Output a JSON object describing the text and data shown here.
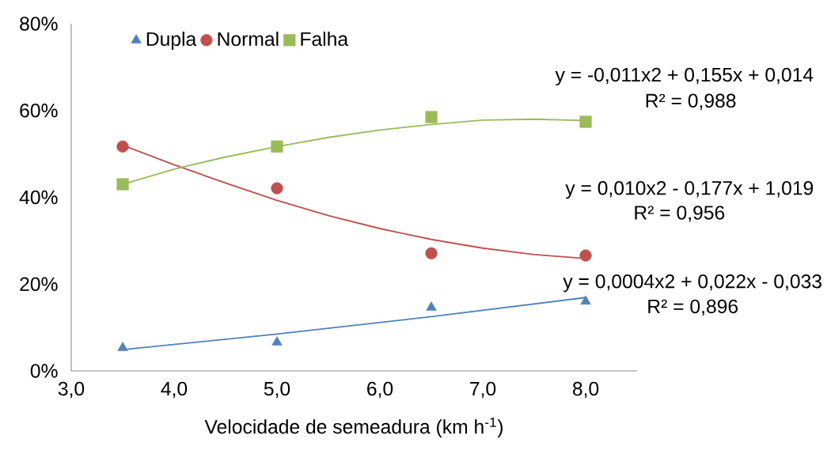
{
  "chart_data": {
    "type": "scatter",
    "xlabel": "Velocidade de semeadura (km h$^{-1}$)",
    "xlim": [
      3,
      8.5
    ],
    "ylim": [
      0,
      80
    ],
    "xticks": [
      {
        "value": 3,
        "label": "3,0"
      },
      {
        "value": 4,
        "label": "4,0"
      },
      {
        "value": 5,
        "label": "5,0"
      },
      {
        "value": 6,
        "label": "6,0"
      },
      {
        "value": 7,
        "label": "7,0"
      },
      {
        "value": 8,
        "label": "8,0"
      }
    ],
    "yticks": [
      {
        "value": 0,
        "label": "0%"
      },
      {
        "value": 20,
        "label": "20%"
      },
      {
        "value": 40,
        "label": "40%"
      },
      {
        "value": 60,
        "label": "60%"
      },
      {
        "value": 80,
        "label": "80%"
      }
    ],
    "grid": false,
    "legend": "top left",
    "series": [
      {
        "name": "Dupla",
        "marker": "triangle",
        "color": "#4f81bd",
        "x": [
          3.5,
          5.0,
          6.5,
          8.0
        ],
        "values": [
          5.3,
          6.6,
          14.6,
          16.0
        ]
      },
      {
        "name": "Normal",
        "marker": "circle",
        "color": "#c0504d",
        "x": [
          3.5,
          5.0,
          6.5,
          8.0
        ],
        "values": [
          51.7,
          42.1,
          27.1,
          26.6
        ]
      },
      {
        "name": "Falha",
        "marker": "square",
        "color": "#9bbb59",
        "x": [
          3.5,
          5.0,
          6.5,
          8.0
        ],
        "values": [
          43.0,
          51.7,
          58.5,
          57.4
        ]
      },
      {
        "type": "line",
        "marker": "none",
        "color": "#4f81bd",
        "x": [
          3.5,
          5.0,
          6.5,
          8.0
        ],
        "values": [
          4.9,
          8.5,
          12.5,
          16.9
        ]
      },
      {
        "type": "line",
        "marker": "none",
        "color": "#c0504d",
        "x": [
          3.5,
          4.0,
          4.5,
          5.0,
          5.5,
          6.0,
          6.5,
          7.0,
          7.5,
          8.0
        ],
        "values": [
          52.0,
          47.5,
          43.3,
          39.3,
          35.8,
          32.8,
          30.3,
          28.3,
          26.8,
          25.9
        ]
      },
      {
        "type": "line",
        "marker": "none",
        "color": "#9bbb59",
        "x": [
          3.5,
          4.0,
          4.5,
          5.0,
          5.5,
          6.0,
          6.5,
          7.0,
          7.5,
          8.0
        ],
        "values": [
          43.0,
          46.5,
          49.3,
          51.7,
          53.8,
          55.5,
          56.8,
          57.8,
          58.0,
          57.7
        ]
      }
    ],
    "annotations": [
      "y = -0,011x2 + 0,155x + 0,014",
      "R² = 0,988",
      "y = 0,010x2 - 0,177x + 1,019",
      "R² = 0,956",
      "y = 0,0004x2 + 0,022x - 0,033",
      "R² = 0,896"
    ]
  }
}
